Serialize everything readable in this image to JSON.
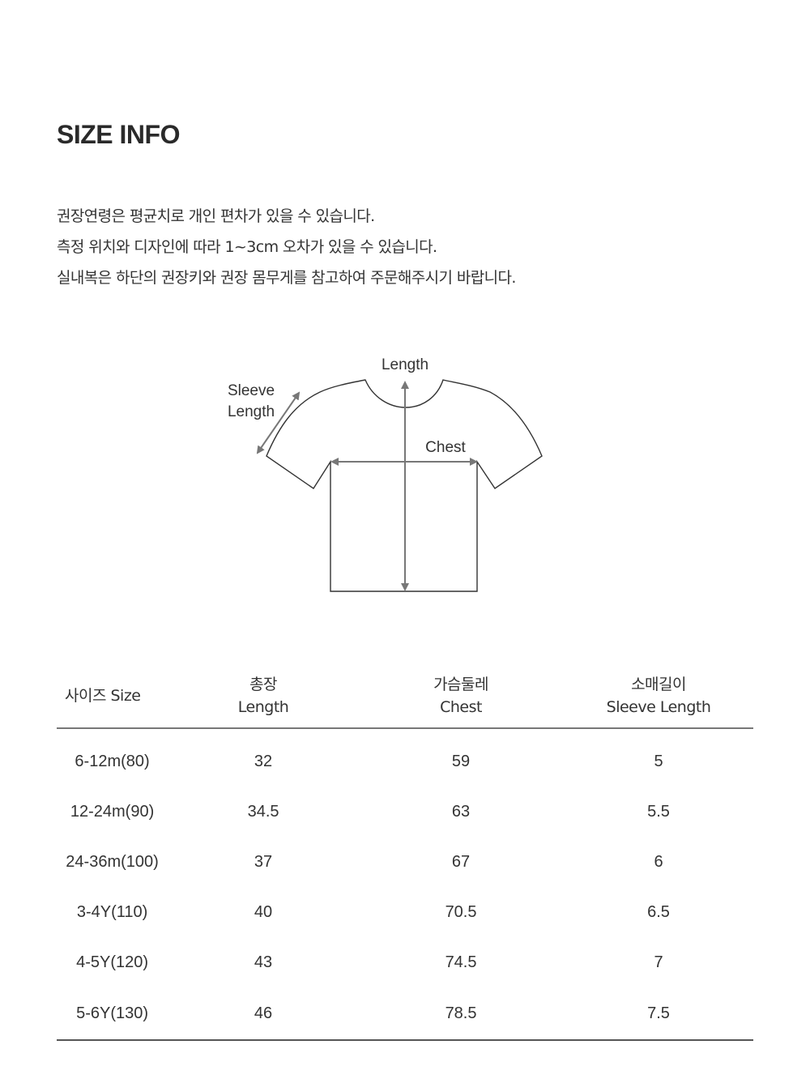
{
  "title": "SIZE INFO",
  "notes": [
    "권장연령은 평균치로 개인 편차가 있을 수 있습니다.",
    "측정 위치와 디자인에 따라 1~3cm 오차가 있을 수 있습니다.",
    "실내복은 하단의 권장키와 권장 몸무게를 참고하여 주문해주시기 바랍니다."
  ],
  "diagram": {
    "length_label": "Length",
    "chest_label": "Chest",
    "sleeve_label_1": "Sleeve",
    "sleeve_label_2": "Length"
  },
  "table": {
    "headers": [
      {
        "ko": "",
        "en": "사이즈 Size"
      },
      {
        "ko": "총장",
        "en": "Length"
      },
      {
        "ko": "가슴둘레",
        "en": "Chest"
      },
      {
        "ko": "소매길이",
        "en": "Sleeve Length"
      }
    ],
    "rows": [
      [
        "6-12m(80)",
        "32",
        "59",
        "5"
      ],
      [
        "12-24m(90)",
        "34.5",
        "63",
        "5.5"
      ],
      [
        "24-36m(100)",
        "37",
        "67",
        "6"
      ],
      [
        "3-4Y(110)",
        "40",
        "70.5",
        "6.5"
      ],
      [
        "4-5Y(120)",
        "43",
        "74.5",
        "7"
      ],
      [
        "5-6Y(130)",
        "46",
        "78.5",
        "7.5"
      ]
    ]
  }
}
